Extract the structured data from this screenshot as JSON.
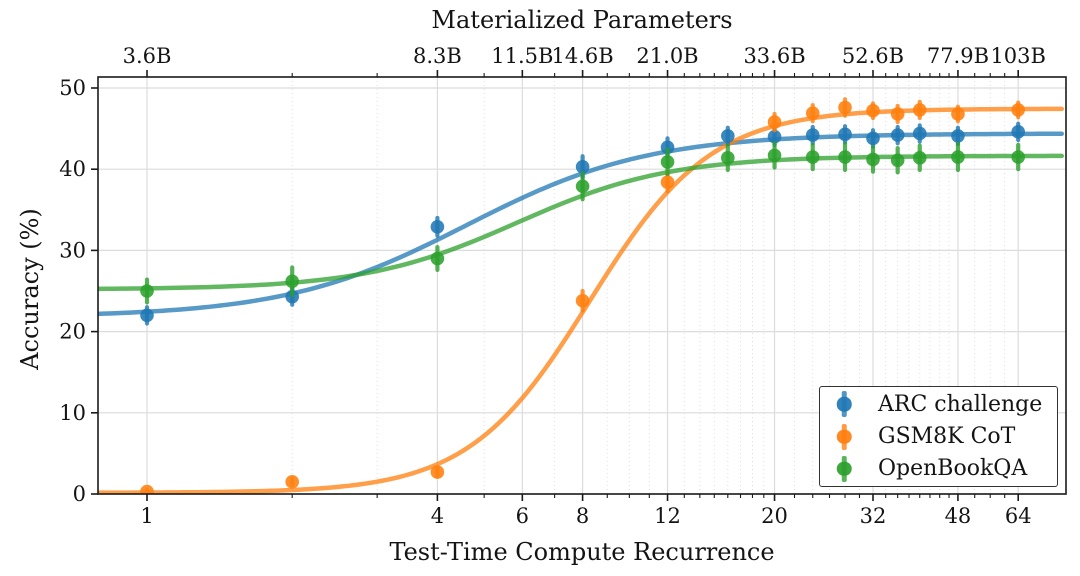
{
  "figure": {
    "top_axis_title": "Materialized Parameters",
    "x_axis_title": "Test-Time Compute Recurrence",
    "y_axis_title": "Accuracy (%)"
  },
  "chart_data": {
    "type": "line",
    "title": "Materialized Parameters",
    "xlabel": "Test-Time Compute Recurrence",
    "ylabel": "Accuracy (%)",
    "x_scale": "log2",
    "xlim": [
      0.79,
      80.4
    ],
    "ylim": [
      0,
      51.35
    ],
    "grid": true,
    "legend_position": "lower right",
    "x_major_ticks": {
      "values": [
        1,
        4,
        6,
        8,
        12,
        20,
        32,
        48,
        64
      ],
      "labels": [
        "1",
        "4",
        "6",
        "8",
        "12",
        "20",
        "32",
        "48",
        "64"
      ]
    },
    "top_axis_ticks": {
      "values": [
        1,
        4,
        6,
        8,
        12,
        20,
        32,
        48,
        64
      ],
      "labels": [
        "3.6B",
        "8.3B",
        "11.5B",
        "14.6B",
        "21.0B",
        "33.6B",
        "52.6B",
        "77.9B",
        "103B"
      ]
    },
    "x_minor_ticks": [
      2,
      3,
      5,
      7,
      9,
      10,
      11,
      13,
      14,
      15,
      16,
      17,
      18,
      19,
      22,
      24,
      26,
      28,
      30,
      34,
      36,
      38,
      40,
      42,
      44,
      46,
      52,
      56,
      60
    ],
    "y_ticks": {
      "values": [
        0,
        10,
        20,
        30,
        40,
        50
      ],
      "labels": [
        "0",
        "10",
        "20",
        "30",
        "40",
        "50"
      ]
    },
    "series": [
      {
        "name": "ARC challenge",
        "color": "#1f77b4",
        "x": [
          1,
          2,
          4,
          8,
          12,
          16,
          20,
          24,
          28,
          32,
          36,
          40,
          48,
          64
        ],
        "y": [
          22.0,
          24.3,
          32.9,
          40.3,
          42.7,
          44.1,
          44.0,
          44.2,
          44.3,
          43.8,
          44.2,
          44.4,
          44.1,
          44.6
        ],
        "yerr": [
          1.0,
          1.0,
          1.1,
          1.3,
          1.1,
          1.0,
          1.0,
          1.0,
          1.0,
          1.0,
          1.0,
          1.0,
          1.0,
          1.0
        ],
        "fit_sigmoid": {
          "base": 21.8,
          "asymptote": 44.4,
          "k": 1.6,
          "midpoint_log2x": 2.2
        }
      },
      {
        "name": "GSM8K CoT",
        "color": "#ff7f0e",
        "x": [
          1,
          2,
          4,
          8,
          12,
          20,
          24,
          28,
          32,
          36,
          40,
          48,
          64
        ],
        "y": [
          0.3,
          1.5,
          2.7,
          23.8,
          38.4,
          45.8,
          46.9,
          47.6,
          47.2,
          46.8,
          47.3,
          46.8,
          47.3
        ],
        "yerr": [
          0.2,
          0.4,
          0.5,
          1.2,
          1.1,
          1.0,
          1.0,
          1.0,
          0.9,
          1.0,
          1.0,
          0.9,
          0.9
        ],
        "fit_sigmoid": {
          "base": 0.15,
          "asymptote": 47.45,
          "k": 2.4,
          "midpoint_log2x": 3.05
        }
      },
      {
        "name": "OpenBookQA",
        "color": "#2ca02c",
        "x": [
          1,
          2,
          4,
          8,
          12,
          16,
          20,
          24,
          28,
          32,
          36,
          40,
          48,
          64
        ],
        "y": [
          25.0,
          26.2,
          29.0,
          37.9,
          40.9,
          41.4,
          41.7,
          41.5,
          41.5,
          41.2,
          41.1,
          41.4,
          41.5,
          41.5
        ],
        "yerr": [
          1.4,
          1.7,
          1.4,
          1.6,
          1.5,
          1.5,
          1.5,
          1.5,
          1.6,
          1.5,
          1.5,
          1.5,
          1.6,
          1.5
        ],
        "fit_sigmoid": {
          "base": 25.2,
          "asymptote": 41.65,
          "k": 1.9,
          "midpoint_log2x": 2.55
        }
      }
    ]
  }
}
